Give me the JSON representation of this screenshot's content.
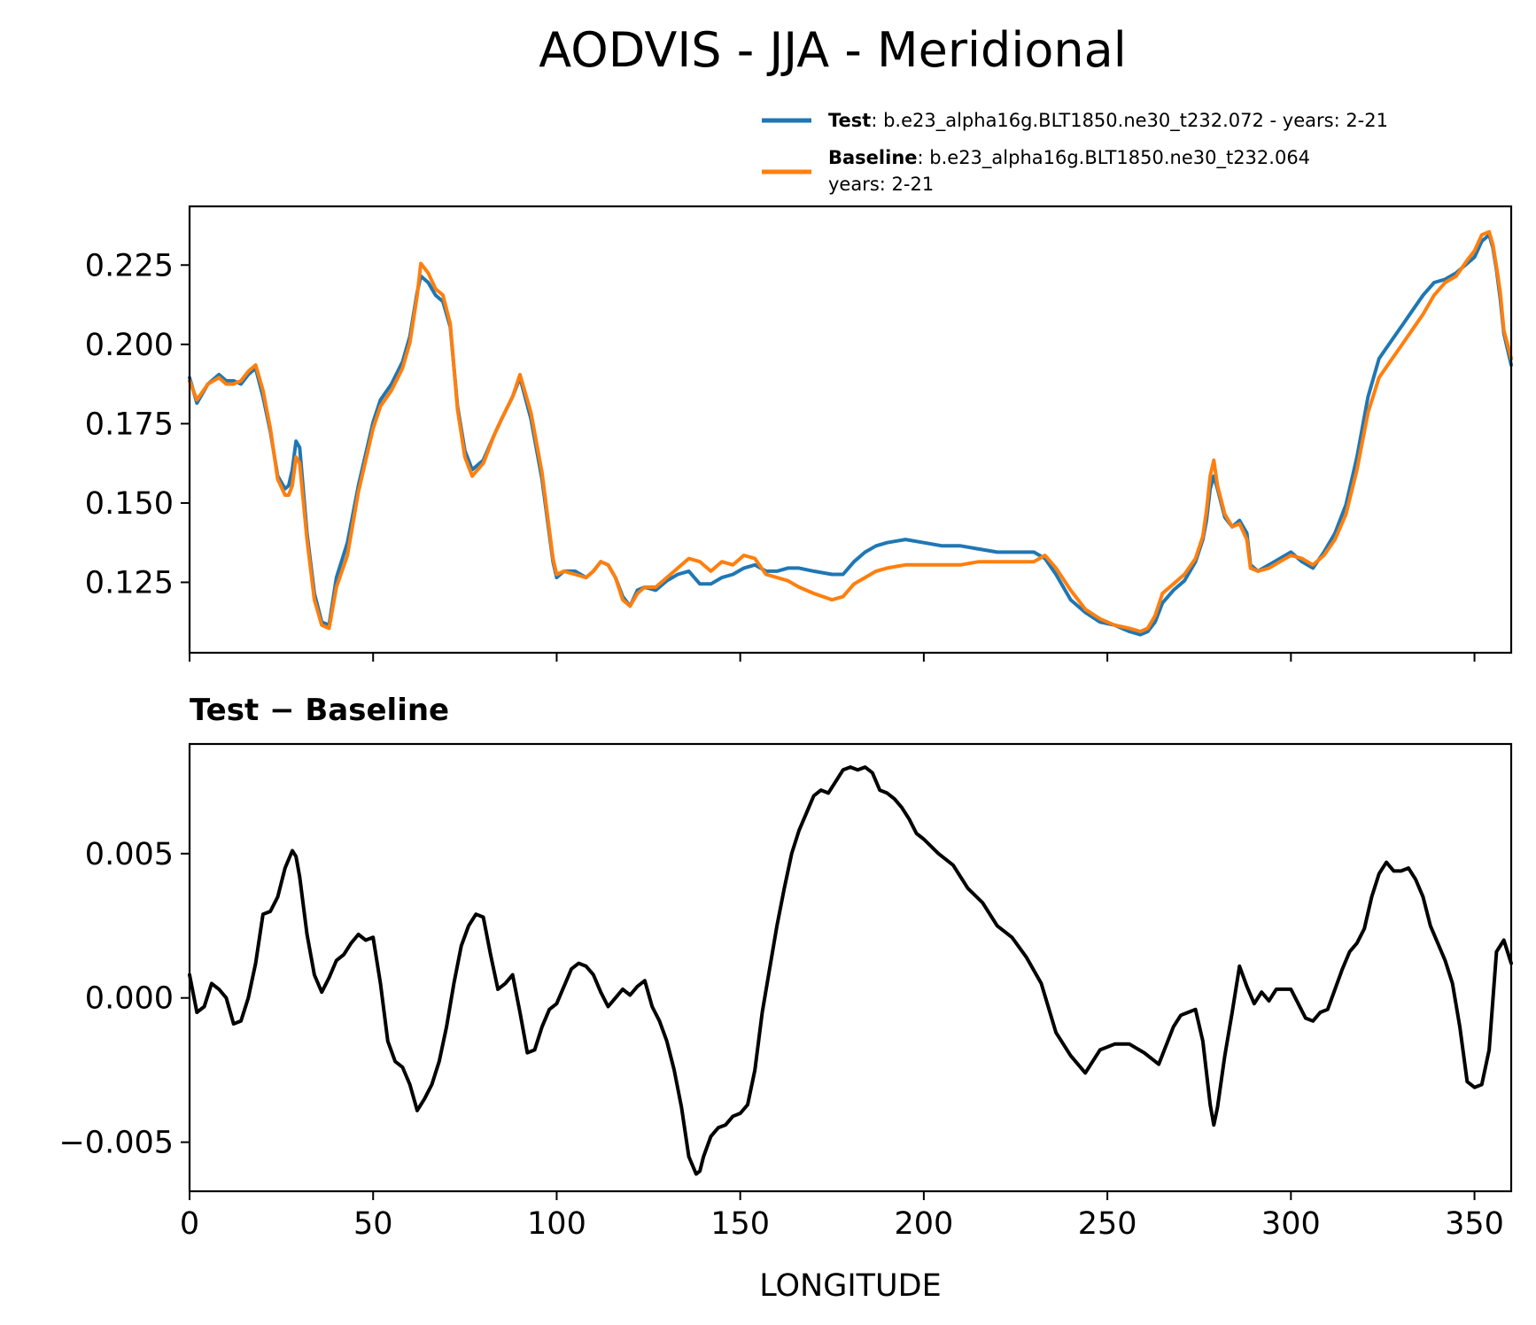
{
  "figure": {
    "title": "AODVIS - JJA - Meridional"
  },
  "chart_data": [
    {
      "type": "line",
      "name": "top-panel",
      "xlabel": "",
      "ylabel": "",
      "xlim": [
        0,
        360
      ],
      "ylim": [
        0.1028,
        0.2435
      ],
      "xticks": [
        0,
        50,
        100,
        150,
        200,
        250,
        300,
        350
      ],
      "yticks": [
        0.125,
        0.15,
        0.175,
        0.2,
        0.225
      ],
      "ytick_labels": [
        "0.125",
        "0.150",
        "0.175",
        "0.200",
        "0.225"
      ],
      "legend": {
        "placement": "above-top-right",
        "entries": [
          {
            "series": "Test",
            "bold": "Test",
            "rest": ": b.e23_alpha16g.BLT1850.ne30_t232.072 - years: 2-21",
            "line2": ""
          },
          {
            "series": "Baseline",
            "bold": "Baseline",
            "rest": ": b.e23_alpha16g.BLT1850.ne30_t232.064",
            "line2": "years: 2-21"
          }
        ]
      },
      "x": [
        0,
        2,
        5,
        8,
        10,
        12,
        14,
        16,
        18,
        20,
        22,
        24,
        26,
        27,
        28,
        29,
        30,
        32,
        34,
        36,
        38,
        40,
        43,
        46,
        50,
        52,
        55,
        58,
        60,
        62,
        63,
        65,
        67,
        69,
        71,
        73,
        75,
        77,
        80,
        83,
        85,
        88,
        90,
        93,
        96,
        99,
        100,
        102,
        105,
        108,
        110,
        112,
        114,
        116,
        118,
        120,
        122,
        124,
        127,
        130,
        133,
        136,
        139,
        142,
        145,
        148,
        151,
        154,
        157,
        160,
        163,
        166,
        170,
        175,
        178,
        181,
        184,
        187,
        190,
        195,
        200,
        205,
        210,
        215,
        220,
        225,
        230,
        233,
        236,
        240,
        244,
        248,
        252,
        256,
        259,
        261,
        263,
        265,
        268,
        271,
        274,
        276,
        277,
        278,
        279,
        280,
        282,
        284,
        286,
        288,
        289,
        291,
        294,
        297,
        300,
        303,
        306,
        309,
        312,
        315,
        318,
        321,
        324,
        327,
        330,
        333,
        336,
        339,
        342,
        345,
        348,
        350,
        352,
        354,
        355,
        356,
        357,
        358,
        360
      ],
      "series": [
        {
          "name": "Test",
          "color": "#1f77b4",
          "values": [
            0.1895,
            0.1815,
            0.1875,
            0.1905,
            0.1885,
            0.1885,
            0.1875,
            0.1905,
            0.1925,
            0.1835,
            0.1725,
            0.1585,
            0.1545,
            0.1555,
            0.1605,
            0.1695,
            0.1675,
            0.1405,
            0.1215,
            0.1125,
            0.1115,
            0.1265,
            0.1375,
            0.1555,
            0.1755,
            0.1825,
            0.1875,
            0.1945,
            0.2025,
            0.2165,
            0.2215,
            0.2195,
            0.2155,
            0.2135,
            0.2055,
            0.1805,
            0.1665,
            0.1605,
            0.1635,
            0.1715,
            0.1765,
            0.1835,
            0.1895,
            0.1765,
            0.1575,
            0.1315,
            0.1265,
            0.1285,
            0.1285,
            0.1265,
            0.1285,
            0.1315,
            0.1305,
            0.1265,
            0.1205,
            0.1175,
            0.1225,
            0.1235,
            0.1225,
            0.1255,
            0.1275,
            0.1285,
            0.1245,
            0.1245,
            0.1265,
            0.1275,
            0.1295,
            0.1305,
            0.1285,
            0.1285,
            0.1295,
            0.1295,
            0.1285,
            0.1275,
            0.1275,
            0.1315,
            0.1345,
            0.1365,
            0.1375,
            0.1385,
            0.1375,
            0.1365,
            0.1365,
            0.1355,
            0.1345,
            0.1345,
            0.1345,
            0.1325,
            0.1275,
            0.1195,
            0.1155,
            0.1125,
            0.1115,
            0.1095,
            0.1085,
            0.1095,
            0.1125,
            0.1185,
            0.1225,
            0.1255,
            0.1315,
            0.1385,
            0.1445,
            0.1545,
            0.1585,
            0.1545,
            0.1455,
            0.1425,
            0.1445,
            0.1405,
            0.1305,
            0.1285,
            0.1305,
            0.1325,
            0.1345,
            0.1315,
            0.1295,
            0.1345,
            0.1405,
            0.1495,
            0.1645,
            0.1835,
            0.1955,
            0.2005,
            0.2055,
            0.2105,
            0.2155,
            0.2195,
            0.2205,
            0.2225,
            0.2255,
            0.2275,
            0.2325,
            0.2345,
            0.2305,
            0.2235,
            0.2145,
            0.2035,
            0.1935
          ]
        },
        {
          "name": "Baseline",
          "color": "#ff7f0e",
          "values": [
            0.1885,
            0.1825,
            0.1875,
            0.1895,
            0.1875,
            0.1875,
            0.1885,
            0.1915,
            0.1935,
            0.1855,
            0.1735,
            0.1575,
            0.1525,
            0.1525,
            0.1555,
            0.1645,
            0.1625,
            0.1385,
            0.1195,
            0.1115,
            0.1105,
            0.1235,
            0.1335,
            0.1535,
            0.1735,
            0.1805,
            0.1855,
            0.1925,
            0.2005,
            0.2155,
            0.2255,
            0.2225,
            0.2175,
            0.2155,
            0.2065,
            0.1795,
            0.1645,
            0.1585,
            0.1625,
            0.1715,
            0.1765,
            0.1835,
            0.1905,
            0.1785,
            0.1595,
            0.1325,
            0.1275,
            0.1285,
            0.1275,
            0.1265,
            0.1285,
            0.1315,
            0.1305,
            0.1265,
            0.1195,
            0.1175,
            0.1215,
            0.1235,
            0.1235,
            0.1265,
            0.1295,
            0.1325,
            0.1315,
            0.1285,
            0.1315,
            0.1305,
            0.1335,
            0.1325,
            0.1275,
            0.1265,
            0.1255,
            0.1235,
            0.1215,
            0.1195,
            0.1205,
            0.1245,
            0.1265,
            0.1285,
            0.1295,
            0.1305,
            0.1305,
            0.1305,
            0.1305,
            0.1315,
            0.1315,
            0.1315,
            0.1315,
            0.1335,
            0.1295,
            0.1225,
            0.1165,
            0.1135,
            0.1115,
            0.1105,
            0.1095,
            0.1105,
            0.1145,
            0.1215,
            0.1245,
            0.1275,
            0.1325,
            0.1395,
            0.1475,
            0.1585,
            0.1635,
            0.1555,
            0.1465,
            0.1425,
            0.1435,
            0.1385,
            0.1295,
            0.1285,
            0.1295,
            0.1315,
            0.1335,
            0.1325,
            0.1305,
            0.1335,
            0.1385,
            0.1465,
            0.1605,
            0.1785,
            0.1895,
            0.1945,
            0.1995,
            0.2045,
            0.2095,
            0.2155,
            0.2195,
            0.2215,
            0.2265,
            0.2295,
            0.2345,
            0.2355,
            0.2315,
            0.2245,
            0.2165,
            0.2045,
            0.1955
          ]
        }
      ]
    },
    {
      "type": "line",
      "name": "difference-panel",
      "title": "Test − Baseline",
      "xlabel": "LONGITUDE",
      "ylabel": "",
      "xlim": [
        0,
        360
      ],
      "ylim": [
        -0.0067,
        0.0088
      ],
      "xticks": [
        0,
        50,
        100,
        150,
        200,
        250,
        300,
        350
      ],
      "xtick_labels": [
        "0",
        "50",
        "100",
        "150",
        "200",
        "250",
        "300",
        "350"
      ],
      "yticks": [
        -0.005,
        0.0,
        0.005
      ],
      "ytick_labels": [
        "−0.005",
        "0.000",
        "0.005"
      ],
      "x": [
        0,
        2,
        4,
        6,
        8,
        10,
        12,
        14,
        16,
        18,
        20,
        22,
        24,
        26,
        28,
        29,
        30,
        32,
        34,
        36,
        38,
        40,
        42,
        44,
        46,
        48,
        50,
        52,
        54,
        56,
        58,
        60,
        62,
        64,
        66,
        68,
        70,
        72,
        74,
        76,
        78,
        80,
        82,
        84,
        86,
        88,
        90,
        92,
        94,
        96,
        98,
        100,
        102,
        104,
        106,
        108,
        110,
        112,
        114,
        116,
        118,
        120,
        122,
        124,
        126,
        128,
        130,
        132,
        134,
        136,
        138,
        139,
        140,
        142,
        144,
        146,
        148,
        150,
        152,
        154,
        156,
        158,
        160,
        162,
        164,
        166,
        168,
        170,
        172,
        174,
        176,
        178,
        180,
        182,
        184,
        186,
        188,
        190,
        192,
        194,
        196,
        198,
        200,
        204,
        208,
        212,
        216,
        220,
        224,
        228,
        232,
        236,
        240,
        244,
        248,
        252,
        256,
        260,
        264,
        268,
        270,
        272,
        274,
        276,
        278,
        279,
        280,
        282,
        284,
        286,
        288,
        290,
        292,
        294,
        296,
        298,
        300,
        302,
        304,
        306,
        308,
        310,
        312,
        314,
        316,
        318,
        320,
        322,
        324,
        326,
        328,
        330,
        332,
        334,
        336,
        338,
        340,
        342,
        344,
        346,
        348,
        350,
        352,
        354,
        356,
        358,
        360
      ],
      "series": [
        {
          "name": "Test - Baseline",
          "color": "#000000",
          "values": [
            0.0008,
            -0.0005,
            -0.0003,
            0.0005,
            0.0003,
            0.0,
            -0.0009,
            -0.0008,
            0.0,
            0.0012,
            0.0029,
            0.003,
            0.0035,
            0.0045,
            0.0051,
            0.0049,
            0.0042,
            0.0022,
            0.0008,
            0.0002,
            0.0007,
            0.0013,
            0.0015,
            0.0019,
            0.0022,
            0.002,
            0.0021,
            0.0005,
            -0.0015,
            -0.0022,
            -0.0024,
            -0.003,
            -0.0039,
            -0.0035,
            -0.003,
            -0.0022,
            -0.001,
            0.0005,
            0.0018,
            0.0025,
            0.0029,
            0.0028,
            0.0015,
            0.0003,
            0.0005,
            0.0008,
            -0.0005,
            -0.0019,
            -0.0018,
            -0.001,
            -0.0004,
            -0.0002,
            0.0004,
            0.001,
            0.0012,
            0.0011,
            0.0008,
            0.0002,
            -0.0003,
            0.0,
            0.0003,
            0.0001,
            0.0004,
            0.0006,
            -0.0003,
            -0.0008,
            -0.0015,
            -0.0025,
            -0.0038,
            -0.0055,
            -0.0061,
            -0.006,
            -0.0055,
            -0.0048,
            -0.0045,
            -0.0044,
            -0.0041,
            -0.004,
            -0.0037,
            -0.0025,
            -0.0005,
            0.001,
            0.0025,
            0.0038,
            0.005,
            0.0058,
            0.0064,
            0.007,
            0.0072,
            0.0071,
            0.0075,
            0.0079,
            0.008,
            0.0079,
            0.008,
            0.0078,
            0.0072,
            0.0071,
            0.0069,
            0.0066,
            0.0062,
            0.0057,
            0.0055,
            0.005,
            0.0046,
            0.0038,
            0.0033,
            0.0025,
            0.0021,
            0.0014,
            0.0005,
            -0.0012,
            -0.002,
            -0.0026,
            -0.0018,
            -0.0016,
            -0.0016,
            -0.0019,
            -0.0023,
            -0.001,
            -0.0006,
            -0.0005,
            -0.0004,
            -0.0015,
            -0.0037,
            -0.0044,
            -0.0038,
            -0.002,
            -0.0005,
            0.0011,
            0.0004,
            -0.0002,
            0.0002,
            -0.0001,
            0.0003,
            0.0003,
            0.0003,
            -0.0002,
            -0.0007,
            -0.0008,
            -0.0005,
            -0.0004,
            0.0003,
            0.001,
            0.0016,
            0.0019,
            0.0024,
            0.0035,
            0.0043,
            0.0047,
            0.0044,
            0.0044,
            0.0045,
            0.0041,
            0.0035,
            0.0025,
            0.0019,
            0.0013,
            0.0005,
            -0.001,
            -0.0029,
            -0.0031,
            -0.003,
            -0.0018,
            0.0016,
            0.002,
            0.0012
          ]
        }
      ]
    }
  ]
}
